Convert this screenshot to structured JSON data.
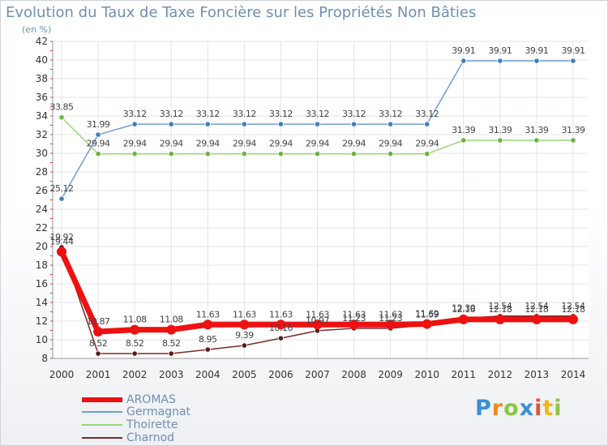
{
  "chart_data": {
    "type": "line",
    "title": "Evolution du Taux de Taxe Foncière sur les Propriétés Non Bâties",
    "ylabel": "(en %)",
    "xlabel": "",
    "ylim": [
      8,
      42
    ],
    "ytick_step": 2,
    "categories": [
      "2000",
      "2001",
      "2002",
      "2003",
      "2004",
      "2005",
      "2006",
      "2007",
      "2008",
      "2009",
      "2010",
      "2011",
      "2012",
      "2013",
      "2014"
    ],
    "series": [
      {
        "name": "Germagnat",
        "color": "#6f9fd0",
        "marker": "#3f7fbf",
        "values": [
          25.12,
          31.99,
          33.12,
          33.12,
          33.12,
          33.12,
          33.12,
          33.12,
          33.12,
          33.12,
          33.12,
          39.91,
          39.91,
          39.91,
          39.91
        ],
        "labels": [
          "25.12",
          "31.99",
          "33.12",
          "33.12",
          "33.12",
          "33.12",
          "33.12",
          "33.12",
          "33.12",
          "33.12",
          "33.12",
          "39.91",
          "39.91",
          "39.91",
          "39.91"
        ]
      },
      {
        "name": "Thoirette",
        "color": "#9cd67a",
        "marker": "#6ab33f",
        "values": [
          33.85,
          29.94,
          29.94,
          29.94,
          29.94,
          29.94,
          29.94,
          29.94,
          29.94,
          29.94,
          29.94,
          31.39,
          31.39,
          31.39,
          31.39
        ],
        "labels": [
          "33.85",
          "29.94",
          "29.94",
          "29.94",
          "29.94",
          "29.94",
          "29.94",
          "29.94",
          "29.94",
          "29.94",
          "29.94",
          "31.39",
          "31.39",
          "31.39",
          "31.39"
        ]
      },
      {
        "name": "Charnod",
        "color": "#7a2a2a",
        "marker": "#5a1a1a",
        "values": [
          19.92,
          8.52,
          8.52,
          8.52,
          8.95,
          9.39,
          10.16,
          10.97,
          11.23,
          11.23,
          11.59,
          12.3,
          12.54,
          12.54,
          12.54
        ],
        "labels": [
          "19.92",
          "8.52",
          "8.52",
          "8.52",
          "8.95",
          "9.39",
          "10.16",
          "10.97",
          "11.23",
          "11.23",
          "11.59",
          "12.30",
          "12.54",
          "12.54",
          "12.54"
        ]
      },
      {
        "name": "AROMAS",
        "color": "#ee1111",
        "marker": "#ee1111",
        "values": [
          19.44,
          10.87,
          11.08,
          11.08,
          11.63,
          11.63,
          11.63,
          11.63,
          11.63,
          11.63,
          11.69,
          12.18,
          12.18,
          12.18,
          12.18
        ],
        "labels": [
          "19.44",
          "10.87",
          "11.08",
          "11.08",
          "11.63",
          "11.63",
          "11.63",
          "11.63",
          "11.63",
          "11.63",
          "11.69",
          "12.18",
          "12.18",
          "12.18",
          "12.18"
        ]
      }
    ],
    "legend": [
      "AROMAS",
      "Germagnat",
      "Thoirette",
      "Charnod"
    ],
    "legend_position": "bottom-left"
  },
  "logo": {
    "text": "Proxiti",
    "letters": [
      "P",
      "r",
      "o",
      "x",
      "i",
      "t",
      "i"
    ]
  }
}
